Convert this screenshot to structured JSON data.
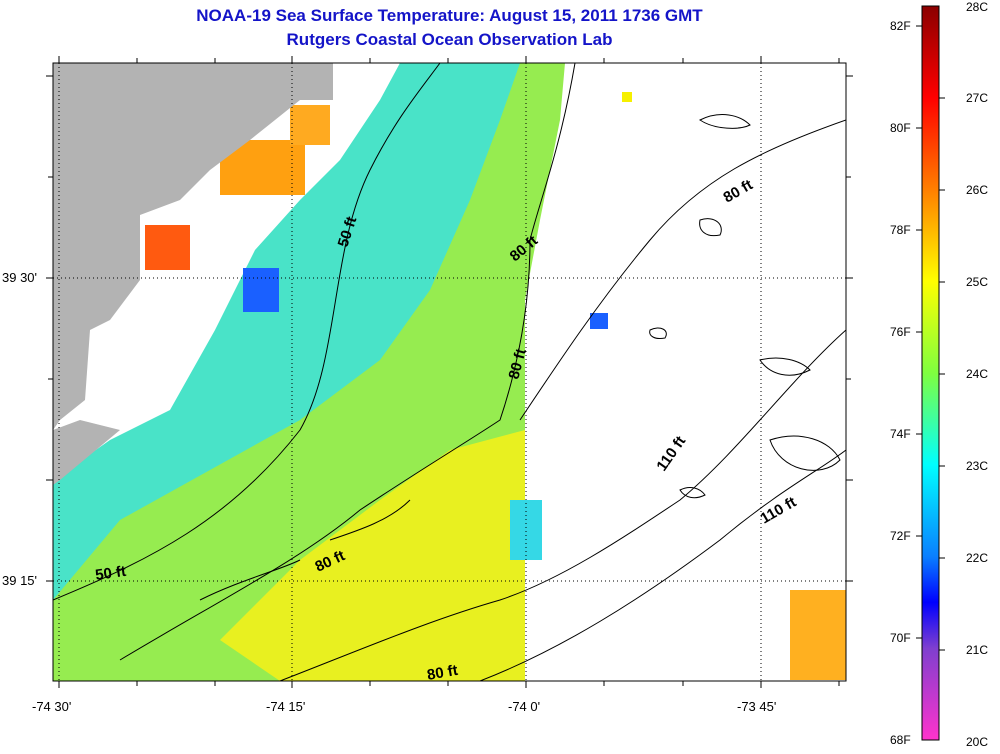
{
  "title": "NOAA-19 Sea Surface Temperature:  August 15, 2011 1736 GMT",
  "subtitle": "Rutgers Coastal Ocean Observation Lab",
  "lon_ticks": [
    "-74 30'",
    "-74 15'",
    "-74 0'",
    "-73 45'"
  ],
  "lat_ticks": [
    "39 30'",
    "39 15'"
  ],
  "colorbar": {
    "fahrenheit": [
      "82F",
      "80F",
      "78F",
      "76F",
      "74F",
      "72F",
      "70F",
      "68F"
    ],
    "celsius": [
      "28C",
      "27C",
      "26C",
      "25C",
      "24C",
      "23C",
      "22C",
      "21C",
      "20C"
    ]
  },
  "contour_labels": [
    {
      "text": "50 ft",
      "rotate": -72
    },
    {
      "text": "80 ft",
      "rotate": -40
    },
    {
      "text": "80 ft",
      "rotate": -30
    },
    {
      "text": "80 ft",
      "rotate": -75
    },
    {
      "text": "110 ft",
      "rotate": -55
    },
    {
      "text": "110 ft",
      "rotate": -30
    },
    {
      "text": "50 ft",
      "rotate": -8
    },
    {
      "text": "80 ft",
      "rotate": -25
    },
    {
      "text": "80 ft",
      "rotate": -10
    }
  ],
  "colors": {
    "land": "#b3b3b3",
    "title": "#1414c8",
    "no_data": "#ffffff"
  }
}
